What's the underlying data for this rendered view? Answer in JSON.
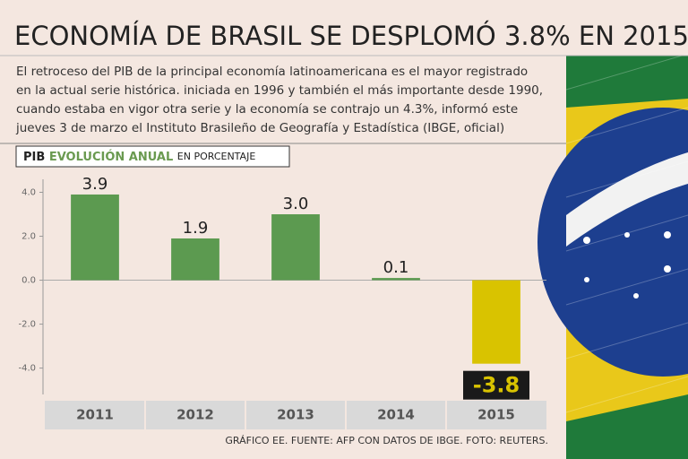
{
  "chart_data": {
    "type": "bar",
    "title": "ECONOMÍA DE BRASIL SE DESPLOMÓ 3.8% EN 2015",
    "subtitle_lines": [
      "El retroceso del PIB de la principal economía latinoamericana es el mayor registrado",
      "en la actual serie histórica. iniciada en 1996 y también el más importante desde 1990,",
      "cuando estaba en vigor otra serie y la economía se contrajo un 4.3%, informó este",
      "jueves 3 de marzo el Instituto Brasileño de Geografía y Estadística (IBGE, oficial)"
    ],
    "chart_label": "PIB",
    "chart_label_2": "EVOLUCIÓN ANUAL",
    "chart_label_3": "EN PORCENTAJE",
    "categories": [
      "2011",
      "2012",
      "2013",
      "2014",
      "2015"
    ],
    "values": [
      3.9,
      1.9,
      3.0,
      0.1,
      -3.8
    ],
    "value_labels": [
      "3.9",
      "1.9",
      "3.0",
      "0.1",
      "-3.8"
    ],
    "colors": [
      "#5c9a50",
      "#5c9a50",
      "#5c9a50",
      "#5c9a50",
      "#d9c300"
    ],
    "ylim": [
      -5.2,
      5
    ],
    "yticks": [
      {
        "value": 4,
        "label": "4.0"
      },
      {
        "value": 2,
        "label": "2.0"
      },
      {
        "value": 0,
        "label": "0.0"
      },
      {
        "value": -2,
        "label": "-2.0"
      },
      {
        "value": -4,
        "label": "-4.0"
      }
    ],
    "grid": false,
    "source": "GRÁFICO EE. FUENTE: AFP CON DATOS DE IBGE. FOTO: REUTERS."
  }
}
